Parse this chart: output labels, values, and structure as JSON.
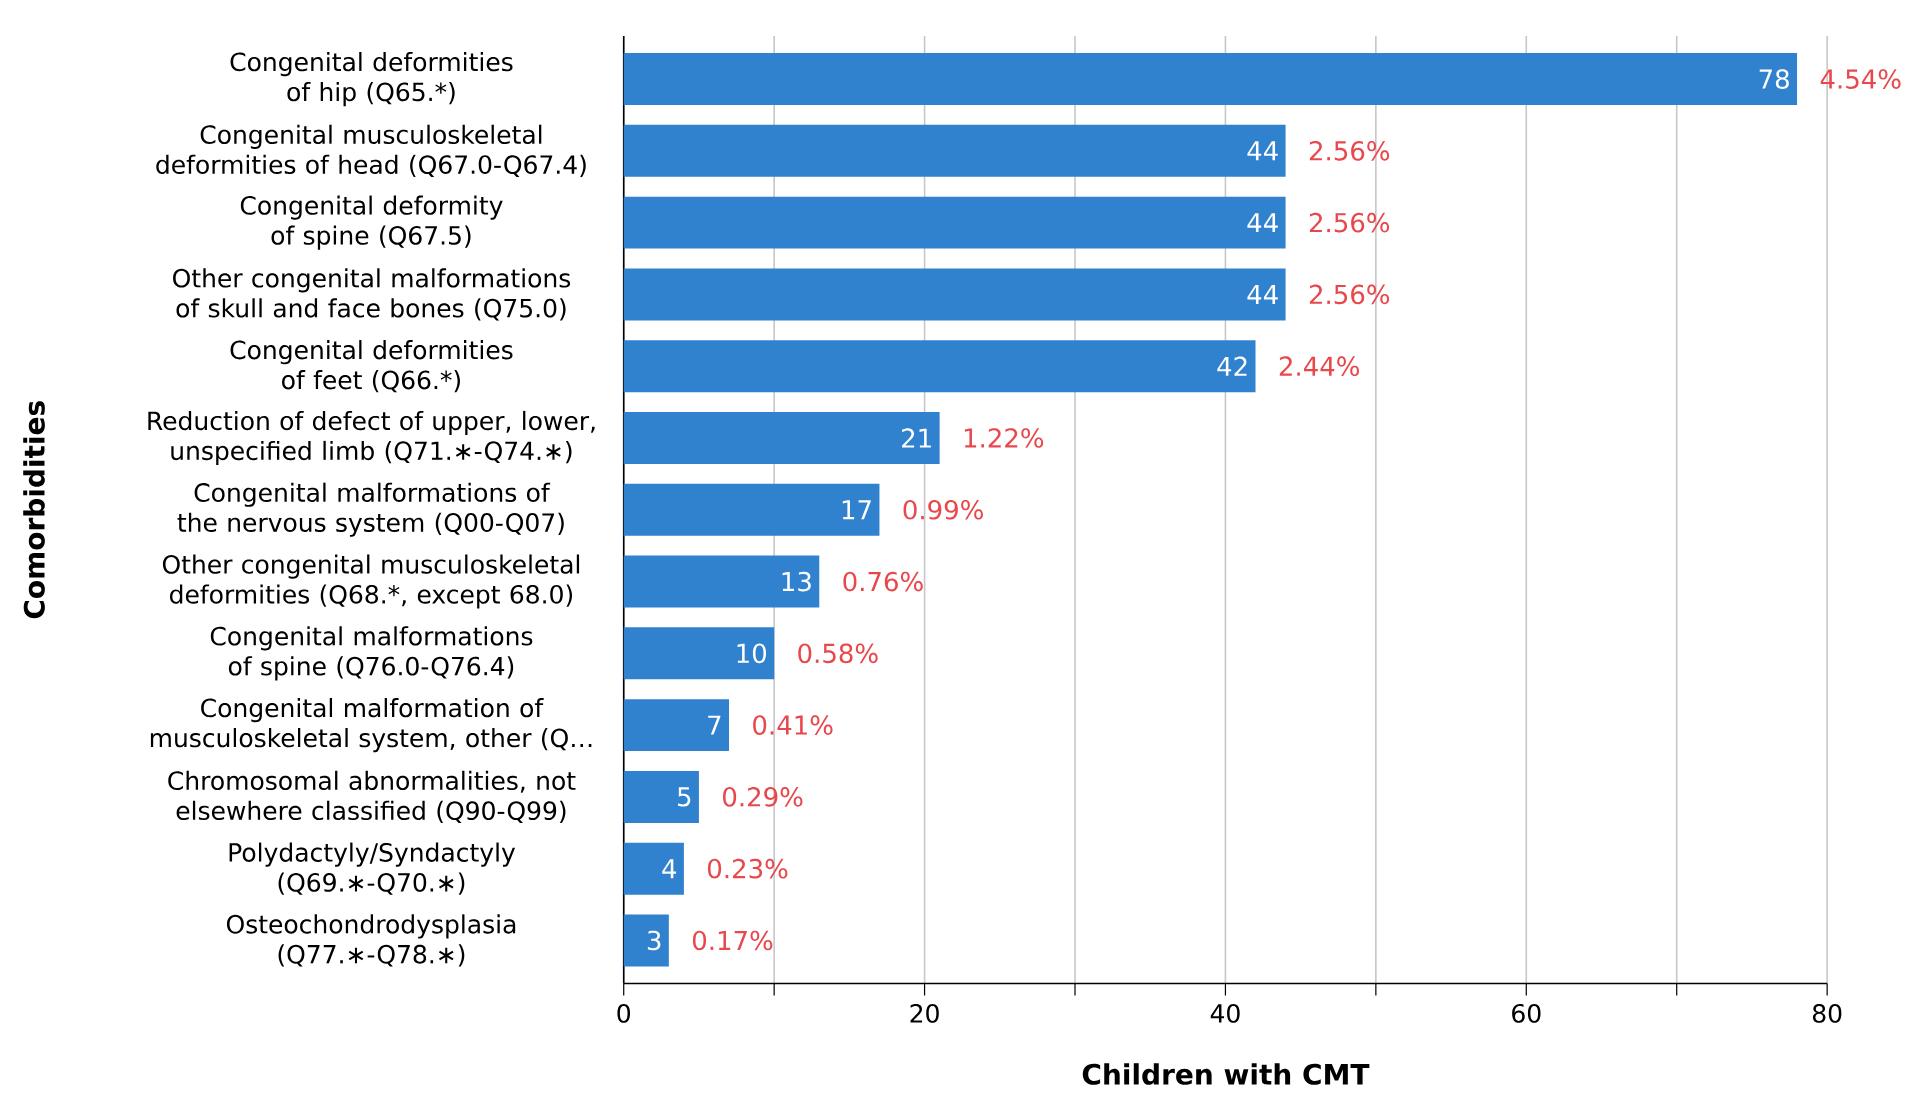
{
  "chart_data": {
    "type": "bar",
    "orientation": "horizontal",
    "xlabel": "Children with CMT",
    "ylabel": "Comorbidities",
    "categories": [
      "Congenital deformities of hip (Q65.*)",
      "Congenital musculoskeletal deformities of head (Q67.0-Q67.4)",
      "Congenital deformity of spine (Q67.5)",
      "Other congenital malformations of skull and face bones (Q75.0)",
      "Congenital deformities of feet (Q66.*)",
      "Reduction of defect of upper, lower, unspecified limb (Q71.∗-Q74.∗)",
      "Congenital malformations of the nervous system (Q00-Q07)",
      "Other congenital musculoskeletal deformities (Q68.*, except 68.0)",
      "Congenital malformations of spine (Q76.0-Q76.4)",
      "Congenital malformation of musculoskeletal system, other (Q…",
      "Chromosomal abnormalities, not elsewhere classified (Q90-Q99)",
      "Polydactyly/Syndactyly (Q69.∗-Q70.∗)",
      "Osteochondrodysplasia (Q77.∗-Q78.∗)"
    ],
    "values": [
      78,
      44,
      44,
      44,
      42,
      21,
      17,
      13,
      10,
      7,
      5,
      4,
      3
    ],
    "color": "#3182ce",
    "data_labels": true,
    "xlim": [
      0,
      80
    ],
    "xticks": [
      0,
      {
        "value": 10,
        "label": null
      },
      20,
      {
        "value": 30,
        "label": null
      },
      40,
      {
        "value": 50,
        "label": null
      },
      60,
      {
        "value": 70,
        "label": null
      },
      80
    ],
    "grid": "x",
    "annotations": [
      {
        "text": "4.54%",
        "x": 78,
        "y": "Congenital deformities of hip (Q65.*)"
      },
      {
        "text": "2.56%",
        "x": 44,
        "y": "Congenital musculoskeletal deformities of head (Q67.0-Q67.4)"
      },
      {
        "text": "2.56%",
        "x": 44,
        "y": "Congenital deformity of spine (Q67.5)"
      },
      {
        "text": "2.56%",
        "x": 44,
        "y": "Other congenital malformations of skull and face bones (Q75.0)"
      },
      {
        "text": "2.44%",
        "x": 42,
        "y": "Congenital deformities of feet (Q66.*)"
      },
      {
        "text": "1.22%",
        "x": 21,
        "y": "Reduction of defect of upper, lower, unspecified limb (Q71.∗-Q74.∗)"
      },
      {
        "text": "0.99%",
        "x": 17,
        "y": "Congenital malformations of the nervous system (Q00-Q07)"
      },
      {
        "text": "0.76%",
        "x": 13,
        "y": "Other congenital musculoskeletal deformities (Q68.*, except 68.0)"
      },
      {
        "text": "0.58%",
        "x": 10,
        "y": "Congenital malformations of spine (Q76.0-Q76.4)"
      },
      {
        "text": "0.41%",
        "x": 7,
        "y": "Congenital malformation of musculoskeletal system, other (Q…"
      },
      {
        "text": "0.29%",
        "x": 5,
        "y": "Chromosomal abnormalities, not elsewhere classified (Q90-Q99)"
      },
      {
        "text": "0.23%",
        "x": 4,
        "y": "Polydactyly/Syndactyly (Q69.∗-Q70.∗)"
      },
      {
        "text": "0.17%",
        "x": 3,
        "y": "Osteochondrodysplasia (Q77.∗-Q78.∗)"
      }
    ]
  }
}
